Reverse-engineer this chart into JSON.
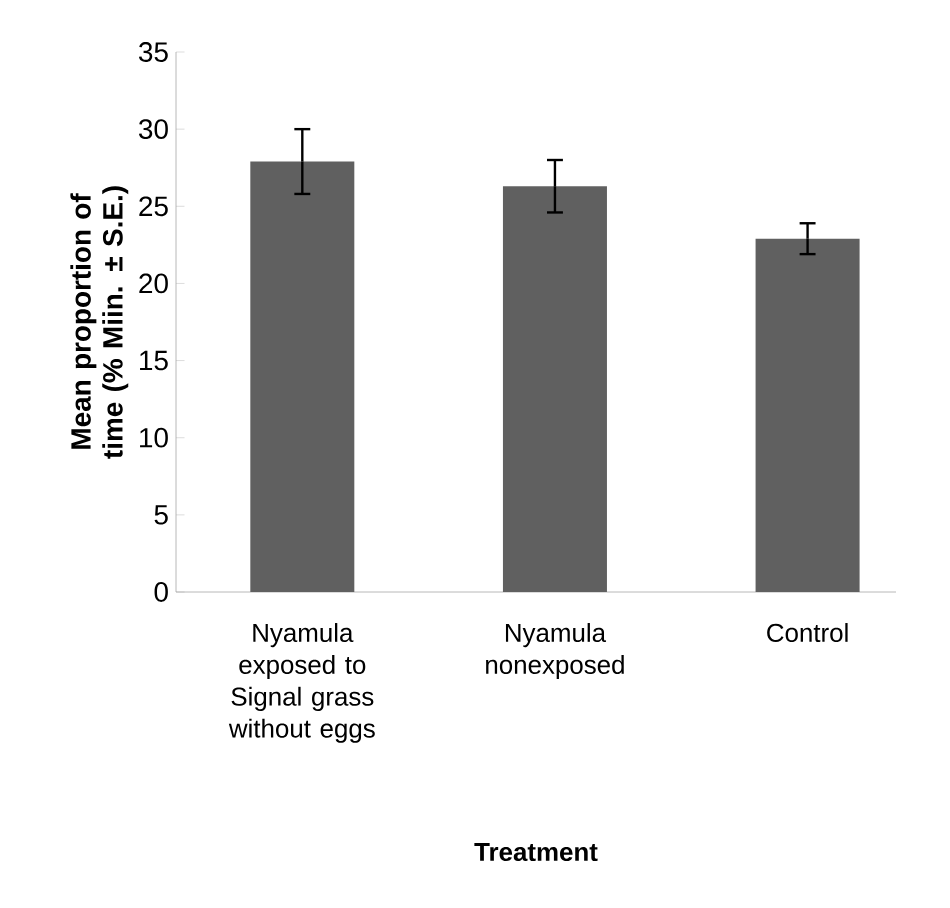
{
  "chart_data": {
    "type": "bar",
    "xlabel": "Treatment",
    "ylabel": "Mean proportion of time (% Miin. ± S.E.)",
    "categories": [
      "Nyamula exposed to Signal grass without eggs",
      "Nyamula nonexposed",
      "Control"
    ],
    "values": [
      27.9,
      26.3,
      22.9
    ],
    "errors": [
      2.1,
      1.7,
      1.0
    ],
    "color": "#606060",
    "ylim": [
      0,
      35
    ],
    "yticks": [
      0,
      5,
      10,
      15,
      20,
      25,
      30,
      35
    ]
  }
}
